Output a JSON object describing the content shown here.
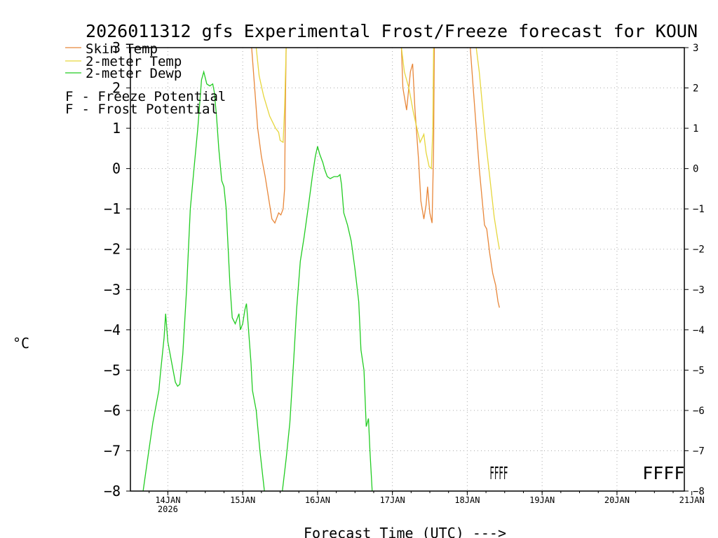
{
  "chart_data": {
    "type": "line",
    "title": "2026011312 gfs Experimental Frost/Freeze forecast for KOUN",
    "ylabel": "°C",
    "xlabel": "Forecast Time (UTC) --->",
    "ylim": [
      -8,
      3
    ],
    "xlim": [
      0,
      7.4
    ],
    "x_units": "days after 13JAN 2026 12UTC",
    "y_ticks": [
      "3",
      "2",
      "1",
      "0",
      "−1",
      "−2",
      "−3",
      "−4",
      "−5",
      "−6",
      "−7",
      "−8"
    ],
    "y_tick_values": [
      3,
      2,
      1,
      0,
      -1,
      -2,
      -3,
      -4,
      -5,
      -6,
      -7,
      -8
    ],
    "x_ticks": [
      {
        "label": "14JAN",
        "sub": "2026",
        "x": 0.5
      },
      {
        "label": "15JAN",
        "sub": "",
        "x": 1.5
      },
      {
        "label": "16JAN",
        "sub": "",
        "x": 2.5
      },
      {
        "label": "17JAN",
        "sub": "",
        "x": 3.5
      },
      {
        "label": "18JAN",
        "sub": "",
        "x": 4.5
      },
      {
        "label": "19JAN",
        "sub": "",
        "x": 5.5
      },
      {
        "label": "20JAN",
        "sub": "",
        "x": 6.5
      },
      {
        "label": "21JAN",
        "sub": "",
        "x": 7.5
      }
    ],
    "grid": true,
    "legend": [
      {
        "name": "Skin Temp",
        "color": "#e8873a"
      },
      {
        "name": "2-meter Temp",
        "color": "#e6d63c"
      },
      {
        "name": "2-meter Dewp",
        "color": "#22cc22"
      }
    ],
    "potential_legend": [
      {
        "letter": "F",
        "text": " - Freeze Potential",
        "color": "#cc2288"
      },
      {
        "letter": "F",
        "text": " - Frost Potential",
        "color": "#4444ee"
      }
    ],
    "series": [
      {
        "name": "Skin Temp",
        "color": "#e8873a",
        "segments": [
          [
            [
              1.62,
              3.0
            ],
            [
              1.66,
              2.0
            ],
            [
              1.7,
              1.0
            ],
            [
              1.75,
              0.3
            ],
            [
              1.8,
              -0.2
            ],
            [
              1.86,
              -0.9
            ],
            [
              1.89,
              -1.25
            ],
            [
              1.93,
              -1.35
            ],
            [
              1.98,
              -1.1
            ],
            [
              2.01,
              -1.15
            ],
            [
              2.04,
              -1.0
            ],
            [
              2.06,
              -0.5
            ],
            [
              2.07,
              1.5
            ],
            [
              2.08,
              3.0
            ]
          ],
          [
            [
              3.62,
              3.0
            ],
            [
              3.64,
              2.0
            ],
            [
              3.69,
              1.45
            ],
            [
              3.74,
              2.4
            ],
            [
              3.77,
              2.6
            ],
            [
              3.8,
              1.5
            ],
            [
              3.85,
              0.2
            ],
            [
              3.88,
              -0.8
            ],
            [
              3.92,
              -1.25
            ],
            [
              3.95,
              -0.9
            ],
            [
              3.97,
              -0.45
            ],
            [
              4.0,
              -1.1
            ],
            [
              4.03,
              -1.35
            ],
            [
              4.05,
              0.5
            ],
            [
              4.06,
              3.0
            ]
          ],
          [
            [
              4.54,
              3.0
            ],
            [
              4.58,
              2.0
            ],
            [
              4.62,
              1.0
            ],
            [
              4.66,
              0.0
            ],
            [
              4.7,
              -0.8
            ],
            [
              4.73,
              -1.4
            ],
            [
              4.76,
              -1.5
            ],
            [
              4.8,
              -2.1
            ],
            [
              4.84,
              -2.6
            ],
            [
              4.88,
              -2.9
            ],
            [
              4.91,
              -3.3
            ],
            [
              4.93,
              -3.45
            ]
          ]
        ]
      },
      {
        "name": "2-meter Temp",
        "color": "#e6d63c",
        "segments": [
          [
            [
              1.68,
              3.0
            ],
            [
              1.72,
              2.3
            ],
            [
              1.78,
              1.8
            ],
            [
              1.86,
              1.3
            ],
            [
              1.94,
              1.0
            ],
            [
              1.98,
              0.9
            ],
            [
              2.0,
              0.7
            ],
            [
              2.04,
              0.65
            ],
            [
              2.06,
              1.5
            ],
            [
              2.08,
              3.0
            ]
          ],
          [
            [
              3.62,
              3.0
            ],
            [
              3.66,
              2.4
            ],
            [
              3.72,
              2.0
            ],
            [
              3.78,
              1.4
            ],
            [
              3.84,
              0.9
            ],
            [
              3.87,
              0.65
            ],
            [
              3.92,
              0.85
            ],
            [
              3.95,
              0.4
            ],
            [
              3.99,
              0.05
            ],
            [
              4.02,
              0.0
            ],
            [
              4.04,
              1.0
            ],
            [
              4.05,
              3.0
            ]
          ],
          [
            [
              4.62,
              3.0
            ],
            [
              4.66,
              2.4
            ],
            [
              4.7,
              1.6
            ],
            [
              4.74,
              0.8
            ],
            [
              4.8,
              -0.2
            ],
            [
              4.86,
              -1.2
            ],
            [
              4.91,
              -1.8
            ],
            [
              4.93,
              -2.0
            ]
          ]
        ]
      },
      {
        "name": "2-meter Dewp",
        "color": "#22cc22",
        "segments": [
          [
            [
              0.17,
              -8.0
            ],
            [
              0.23,
              -7.2
            ],
            [
              0.3,
              -6.3
            ],
            [
              0.38,
              -5.5
            ],
            [
              0.4,
              -5.1
            ],
            [
              0.45,
              -4.2
            ],
            [
              0.47,
              -3.6
            ],
            [
              0.5,
              -4.3
            ],
            [
              0.55,
              -4.8
            ],
            [
              0.6,
              -5.3
            ],
            [
              0.63,
              -5.4
            ],
            [
              0.66,
              -5.35
            ],
            [
              0.7,
              -4.6
            ],
            [
              0.75,
              -3.0
            ],
            [
              0.8,
              -1.0
            ],
            [
              0.85,
              0.0
            ],
            [
              0.9,
              1.0
            ],
            [
              0.95,
              2.2
            ],
            [
              0.98,
              2.4
            ],
            [
              1.02,
              2.1
            ],
            [
              1.06,
              2.05
            ],
            [
              1.1,
              2.1
            ],
            [
              1.12,
              1.9
            ],
            [
              1.15,
              1.3
            ],
            [
              1.18,
              0.5
            ],
            [
              1.22,
              -0.3
            ],
            [
              1.25,
              -0.45
            ],
            [
              1.28,
              -1.0
            ],
            [
              1.33,
              -2.9
            ],
            [
              1.36,
              -3.7
            ],
            [
              1.4,
              -3.85
            ],
            [
              1.45,
              -3.6
            ],
            [
              1.47,
              -4.0
            ],
            [
              1.5,
              -3.85
            ],
            [
              1.53,
              -3.5
            ],
            [
              1.55,
              -3.35
            ],
            [
              1.57,
              -3.8
            ],
            [
              1.61,
              -4.8
            ],
            [
              1.63,
              -5.5
            ],
            [
              1.68,
              -6.0
            ],
            [
              1.73,
              -7.0
            ],
            [
              1.79,
              -8.0
            ]
          ],
          [
            [
              2.03,
              -8.0
            ],
            [
              2.08,
              -7.2
            ],
            [
              2.13,
              -6.3
            ],
            [
              2.18,
              -4.8
            ],
            [
              2.22,
              -3.5
            ],
            [
              2.27,
              -2.3
            ],
            [
              2.32,
              -1.7
            ],
            [
              2.38,
              -0.9
            ],
            [
              2.43,
              -0.2
            ],
            [
              2.47,
              0.3
            ],
            [
              2.5,
              0.55
            ],
            [
              2.53,
              0.35
            ],
            [
              2.57,
              0.15
            ],
            [
              2.6,
              -0.05
            ],
            [
              2.63,
              -0.2
            ],
            [
              2.67,
              -0.25
            ],
            [
              2.72,
              -0.2
            ],
            [
              2.77,
              -0.2
            ],
            [
              2.8,
              -0.15
            ],
            [
              2.82,
              -0.4
            ],
            [
              2.85,
              -1.1
            ],
            [
              2.9,
              -1.4
            ],
            [
              2.95,
              -1.8
            ],
            [
              3.0,
              -2.5
            ],
            [
              3.05,
              -3.3
            ],
            [
              3.08,
              -4.5
            ],
            [
              3.12,
              -5.0
            ],
            [
              3.15,
              -6.4
            ],
            [
              3.18,
              -6.2
            ],
            [
              3.2,
              -7.0
            ],
            [
              3.23,
              -8.0
            ]
          ]
        ]
      }
    ],
    "potential_markers": [
      {
        "text": "FFFF",
        "x": 4.8,
        "y": -7.55,
        "color": "#cc2288",
        "compressed": true
      },
      {
        "text": "FFFF",
        "x": 6.84,
        "y": -7.55,
        "color": "#cc2288",
        "compressed": false
      }
    ]
  }
}
